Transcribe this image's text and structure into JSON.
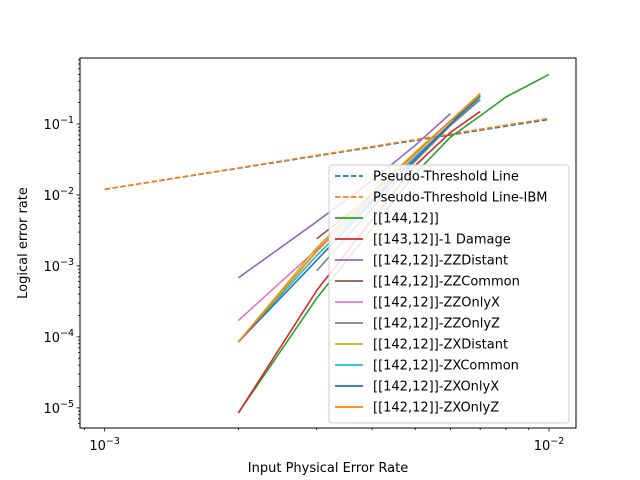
{
  "chart_data": {
    "type": "line",
    "title": "",
    "xlabel": "Input Physical Error Rate",
    "ylabel": "Logical error rate",
    "xscale": "log",
    "yscale": "log",
    "xlim": [
      0.00088,
      0.0115
    ],
    "ylim": [
      5.2e-06,
      0.85
    ],
    "xticks": [
      {
        "value": 0.001,
        "base": "10",
        "exp": "−3"
      },
      {
        "value": 0.01,
        "base": "10",
        "exp": "−2"
      }
    ],
    "yticks": [
      {
        "value": 1e-05,
        "base": "10",
        "exp": "−5"
      },
      {
        "value": 0.0001,
        "base": "10",
        "exp": "−4"
      },
      {
        "value": 0.001,
        "base": "10",
        "exp": "−3"
      },
      {
        "value": 0.01,
        "base": "10",
        "exp": "−2"
      },
      {
        "value": 0.1,
        "base": "10",
        "exp": "−1"
      }
    ],
    "grid": false,
    "legend_position": "lower-right",
    "series": [
      {
        "name": "Pseudo-Threshold Line",
        "color": "#1f77b4",
        "dash": true,
        "x": [
          0.001,
          0.01
        ],
        "y": [
          0.012,
          0.116
        ]
      },
      {
        "name": "Pseudo-Threshold Line-IBM",
        "color": "#ff7f0e",
        "dash": true,
        "x": [
          0.001,
          0.01
        ],
        "y": [
          0.012,
          0.12
        ]
      },
      {
        "name": "[[144,12]]",
        "color": "#2ca02c",
        "dash": false,
        "x": [
          0.002,
          0.003,
          0.004,
          0.005,
          0.006,
          0.007,
          0.008,
          0.01
        ],
        "y": [
          8.5e-06,
          0.00035,
          0.0034,
          0.02,
          0.065,
          0.13,
          0.24,
          0.5
        ]
      },
      {
        "name": "[[143,12]]-1 Damage",
        "color": "#d62728",
        "dash": false,
        "x": [
          0.002,
          0.003,
          0.004,
          0.005,
          0.006,
          0.007
        ],
        "y": [
          8.5e-06,
          0.00045,
          0.0045,
          0.026,
          0.076,
          0.15
        ]
      },
      {
        "name": "[[142,12]]-ZZDistant",
        "color": "#9467bd",
        "dash": false,
        "x": [
          0.002,
          0.003,
          0.004,
          0.005,
          0.006
        ],
        "y": [
          0.00068,
          0.0042,
          0.016,
          0.05,
          0.14
        ]
      },
      {
        "name": "[[142,12]]-ZZCommon",
        "color": "#8c564b",
        "dash": false,
        "x": [
          0.003,
          0.004,
          0.005,
          0.006,
          0.007
        ],
        "y": [
          0.0024,
          0.01,
          0.04,
          0.11,
          0.22
        ]
      },
      {
        "name": "[[142,12]]-ZZOnlyX",
        "color": "#e377c2",
        "dash": false,
        "x": [
          0.002,
          0.003,
          0.004,
          0.005,
          0.006,
          0.007
        ],
        "y": [
          0.00017,
          0.0017,
          0.009,
          0.035,
          0.1,
          0.22
        ]
      },
      {
        "name": "[[142,12]]-ZZOnlyZ",
        "color": "#7f7f7f",
        "dash": false,
        "x": [
          0.003,
          0.004,
          0.005,
          0.006,
          0.007
        ],
        "y": [
          0.00085,
          0.0065,
          0.03,
          0.095,
          0.22
        ]
      },
      {
        "name": "[[142,12]]-ZXDistant",
        "color": "#bcbd22",
        "dash": false,
        "x": [
          0.002,
          0.003,
          0.004,
          0.005,
          0.006,
          0.007
        ],
        "y": [
          8.5e-05,
          0.0018,
          0.011,
          0.04,
          0.11,
          0.27
        ]
      },
      {
        "name": "[[142,12]]-ZXCommon",
        "color": "#17becf",
        "dash": false,
        "x": [
          0.002,
          0.003,
          0.004,
          0.005,
          0.006,
          0.007
        ],
        "y": [
          8.5e-05,
          0.0014,
          0.0085,
          0.034,
          0.1,
          0.24
        ]
      },
      {
        "name": "[[142,12]]-ZXOnlyX",
        "color": "#1f77b4",
        "dash": false,
        "x": [
          0.002,
          0.003,
          0.004,
          0.005,
          0.006,
          0.007
        ],
        "y": [
          8.5e-05,
          0.0012,
          0.008,
          0.032,
          0.1,
          0.25
        ]
      },
      {
        "name": "[[142,12]]-ZXOnlyZ",
        "color": "#ff7f0e",
        "dash": false,
        "x": [
          0.002,
          0.003,
          0.004,
          0.005,
          0.006,
          0.007
        ],
        "y": [
          8.5e-05,
          0.0016,
          0.01,
          0.038,
          0.11,
          0.26
        ]
      }
    ]
  }
}
